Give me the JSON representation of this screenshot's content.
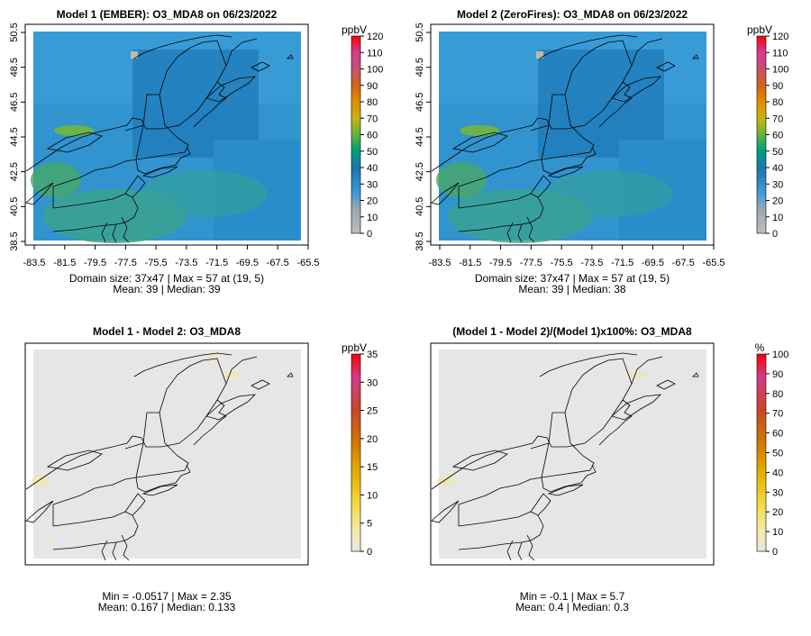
{
  "chart_data": [
    {
      "type": "heatmap",
      "title": "Model 1 (EMBER): O3_MDA8 on 06/23/2022",
      "x_ticks": [
        "-83.5",
        "-81.5",
        "-79.5",
        "-77.5",
        "-75.5",
        "-73.5",
        "-71.5",
        "-69.5",
        "-67.5",
        "-65.5"
      ],
      "y_ticks": [
        "38.5",
        "40.5",
        "42.5",
        "44.5",
        "46.5",
        "48.5",
        "50.5"
      ],
      "xlim": [
        -83.5,
        -65.5
      ],
      "ylim": [
        38.5,
        50.5
      ],
      "colorbar": {
        "unit": "ppbV",
        "ticks": [
          "0",
          "10",
          "20",
          "30",
          "40",
          "50",
          "60",
          "70",
          "80",
          "90",
          "100",
          "110",
          "120"
        ],
        "range": [
          0,
          120
        ]
      },
      "stats": [
        "Domain size: 37x47 | Max = 57 at (19, 5)",
        "Mean: 39 |  Median: 39"
      ]
    },
    {
      "type": "heatmap",
      "title": "Model 2 (ZeroFires): O3_MDA8 on 06/23/2022",
      "x_ticks": [
        "-83.5",
        "-81.5",
        "-79.5",
        "-77.5",
        "-75.5",
        "-73.5",
        "-71.5",
        "-69.5",
        "-67.5",
        "-65.5"
      ],
      "y_ticks": [
        "38.5",
        "40.5",
        "42.5",
        "44.5",
        "46.5",
        "48.5",
        "50.5"
      ],
      "xlim": [
        -83.5,
        -65.5
      ],
      "ylim": [
        38.5,
        50.5
      ],
      "colorbar": {
        "unit": "ppbV",
        "ticks": [
          "0",
          "10",
          "20",
          "30",
          "40",
          "50",
          "60",
          "70",
          "80",
          "90",
          "100",
          "110",
          "120"
        ],
        "range": [
          0,
          120
        ]
      },
      "stats": [
        "Domain size: 37x47 | Max = 57 at (19, 5)",
        "Mean: 39 |  Median: 38"
      ]
    },
    {
      "type": "heatmap",
      "title": "Model 1 - Model 2: O3_MDA8",
      "colorbar": {
        "unit": "ppbV",
        "ticks": [
          "0",
          "5",
          "10",
          "15",
          "20",
          "25",
          "30",
          "35"
        ],
        "range": [
          0,
          35
        ]
      },
      "stats": [
        "Min = -0.0517 | Max = 2.35",
        "Mean: 0.167 |  Median: 0.133"
      ]
    },
    {
      "type": "heatmap",
      "title": "(Model 1 - Model 2)/(Model 1)x100%: O3_MDA8",
      "colorbar": {
        "unit": "%",
        "ticks": [
          "0",
          "10",
          "20",
          "30",
          "40",
          "50",
          "60",
          "70",
          "80",
          "90",
          "100"
        ],
        "range": [
          0,
          100
        ]
      },
      "stats": [
        "Min = -0.1 | Max = 5.7",
        "Mean: 0.4 |  Median: 0.3"
      ]
    }
  ],
  "colors": {
    "background": "#ffffff",
    "no_change": "#e6e6e6",
    "ozone_scale": [
      "#bdbdbd",
      "#3f9bd6",
      "#1a75b4",
      "#00a079",
      "#5fb43c",
      "#c8b414",
      "#e08c00",
      "#d24b14",
      "#c83c96",
      "#ff0000"
    ],
    "diff_scale": [
      "#e6e6e6",
      "#f5e66e",
      "#e6b400",
      "#d27800",
      "#c84628",
      "#d23c8c",
      "#ff0000"
    ]
  }
}
